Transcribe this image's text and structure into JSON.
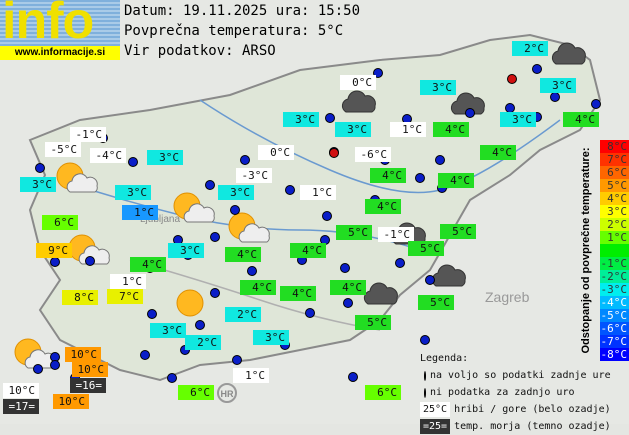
{
  "logo": {
    "text": "info",
    "url": "www.informacije.si"
  },
  "header": {
    "date_line": "Datum: 19.11.2025 ura: 15:50",
    "avg_line": "Povprečna temperatura: 5°C",
    "source_line": "Vir podatkov: ARSO"
  },
  "map_labels": {
    "country_hr": "HR",
    "city_zagreb": "Zagreb",
    "city_ljubljana": "Ljubljana"
  },
  "colors": {
    "white": "#ffffff",
    "cyan": "#10e8e0",
    "teal": "#20e8c0",
    "green": "#22dd22",
    "bright_green": "#66ff00",
    "blue": "#1898ff",
    "yellow": "#e8f000",
    "yellow_orange": "#ffcc00",
    "orange": "#ff9900",
    "dark": "#333333"
  },
  "stations": [
    {
      "t": "2°C",
      "c": "cyan"
    },
    {
      "t": "0°C",
      "c": "white"
    },
    {
      "t": "3°C",
      "c": "cyan"
    },
    {
      "t": "3°C",
      "c": "cyan"
    },
    {
      "t": "3°C",
      "c": "cyan"
    },
    {
      "t": "3°C",
      "c": "cyan"
    },
    {
      "t": "1°C",
      "c": "white"
    },
    {
      "t": "4°C",
      "c": "green"
    },
    {
      "t": "3°C",
      "c": "cyan"
    },
    {
      "t": "4°C",
      "c": "green"
    },
    {
      "t": "-1°C",
      "c": "white"
    },
    {
      "t": "-5°C",
      "c": "white"
    },
    {
      "t": "-4°C",
      "c": "white"
    },
    {
      "t": "3°C",
      "c": "cyan"
    },
    {
      "t": "0°C",
      "c": "white"
    },
    {
      "t": "-6°C",
      "c": "white"
    },
    {
      "t": "4°C",
      "c": "green"
    },
    {
      "t": "3°C",
      "c": "cyan"
    },
    {
      "t": "-3°C",
      "c": "white"
    },
    {
      "t": "4°C",
      "c": "green"
    },
    {
      "t": "4°C",
      "c": "green"
    },
    {
      "t": "3°C",
      "c": "cyan"
    },
    {
      "t": "3°C",
      "c": "cyan"
    },
    {
      "t": "1°C",
      "c": "white"
    },
    {
      "t": "1°C",
      "c": "blue"
    },
    {
      "t": "4°C",
      "c": "green"
    },
    {
      "t": "6°C",
      "c": "bright_green"
    },
    {
      "t": "5°C",
      "c": "green"
    },
    {
      "t": "-1°C",
      "c": "white"
    },
    {
      "t": "5°C",
      "c": "green"
    },
    {
      "t": "5°C",
      "c": "green"
    },
    {
      "t": "9°C",
      "c": "yellow_orange"
    },
    {
      "t": "3°C",
      "c": "cyan"
    },
    {
      "t": "4°C",
      "c": "green"
    },
    {
      "t": "4°C",
      "c": "green"
    },
    {
      "t": "4°C",
      "c": "green"
    },
    {
      "t": "1°C",
      "c": "white"
    },
    {
      "t": "4°C",
      "c": "green"
    },
    {
      "t": "4°C",
      "c": "green"
    },
    {
      "t": "4°C",
      "c": "green"
    },
    {
      "t": "8°C",
      "c": "yellow"
    },
    {
      "t": "7°C",
      "c": "yellow"
    },
    {
      "t": "5°C",
      "c": "green"
    },
    {
      "t": "2°C",
      "c": "cyan"
    },
    {
      "t": "5°C",
      "c": "green"
    },
    {
      "t": "3°C",
      "c": "cyan"
    },
    {
      "t": "3°C",
      "c": "cyan"
    },
    {
      "t": "2°C",
      "c": "cyan"
    },
    {
      "t": "10°C",
      "c": "orange"
    },
    {
      "t": "10°C",
      "c": "orange"
    },
    {
      "t": "=16=",
      "c": "dark"
    },
    {
      "t": "10°C",
      "c": "white"
    },
    {
      "t": "=17=",
      "c": "dark"
    },
    {
      "t": "10°C",
      "c": "orange"
    },
    {
      "t": "1°C",
      "c": "white"
    },
    {
      "t": "6°C",
      "c": "bright_green"
    },
    {
      "t": "6°C",
      "c": "bright_green"
    }
  ],
  "scale": {
    "title": "Odstopanje od povprečne temperature:",
    "steps": [
      {
        "t": "8°C",
        "c": "#ff0000"
      },
      {
        "t": "7°C",
        "c": "#ff3300"
      },
      {
        "t": "6°C",
        "c": "#ff6600"
      },
      {
        "t": "5°C",
        "c": "#ff9900"
      },
      {
        "t": "4°C",
        "c": "#ffcc00"
      },
      {
        "t": "3°C",
        "c": "#ffff00"
      },
      {
        "t": "2°C",
        "c": "#ccff00"
      },
      {
        "t": "1°C",
        "c": "#66ff00"
      },
      {
        "t": "",
        "c": "#00ee00"
      },
      {
        "t": "-1°C",
        "c": "#00ee44"
      },
      {
        "t": "-2°C",
        "c": "#00ee99"
      },
      {
        "t": "-3°C",
        "c": "#00eeee"
      },
      {
        "t": "-4°C",
        "c": "#00bbff"
      },
      {
        "t": "-5°C",
        "c": "#0088ff"
      },
      {
        "t": "-6°C",
        "c": "#0055ff"
      },
      {
        "t": "-7°C",
        "c": "#0033ff"
      },
      {
        "t": "-8°C",
        "c": "#0000ff"
      }
    ]
  },
  "legend": {
    "title": "Legenda:",
    "blue_dot": "na voljo so podatki zadnje ure",
    "red_dot": "ni podatka za zadnjo uro",
    "white_swatch": "25°C",
    "white_desc": "hribi / gore (belo ozadje)",
    "dark_swatch": "=25=",
    "dark_desc": "temp. morja (temno ozadje)"
  }
}
